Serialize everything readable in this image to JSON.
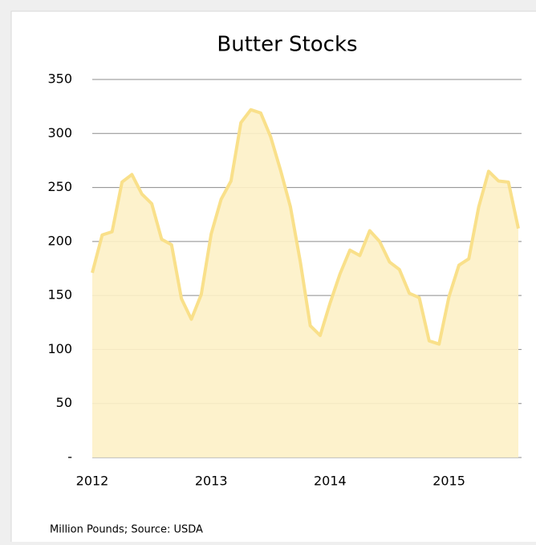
{
  "chart_data": {
    "type": "area",
    "title": "Butter Stocks",
    "note": "Million Pounds; Source: USDA",
    "categories": [
      "2012",
      null,
      null,
      null,
      null,
      null,
      null,
      null,
      null,
      null,
      null,
      null,
      "2013",
      null,
      null,
      null,
      null,
      null,
      null,
      null,
      null,
      null,
      null,
      null,
      "2014",
      null,
      null,
      null,
      null,
      null,
      null,
      null,
      null,
      null,
      null,
      null,
      "2015",
      null,
      null,
      null,
      null,
      null,
      null,
      null
    ],
    "values": [
      171,
      206,
      209,
      255,
      262,
      244,
      235,
      202,
      197,
      147,
      128,
      151,
      207,
      239,
      256,
      310,
      322,
      319,
      297,
      266,
      232,
      181,
      122,
      113,
      143,
      170,
      192,
      187,
      210,
      200,
      181,
      174,
      152,
      148,
      108,
      105,
      149,
      178,
      184,
      232,
      265,
      256,
      255,
      212
    ],
    "color": "#f9e08a",
    "fill": "#fdf1c6",
    "ylim": [
      0,
      350
    ],
    "yticks": [
      {
        "value": 0,
        "label": "-"
      },
      50,
      100,
      150,
      200,
      250,
      300,
      350
    ],
    "grid": true
  }
}
